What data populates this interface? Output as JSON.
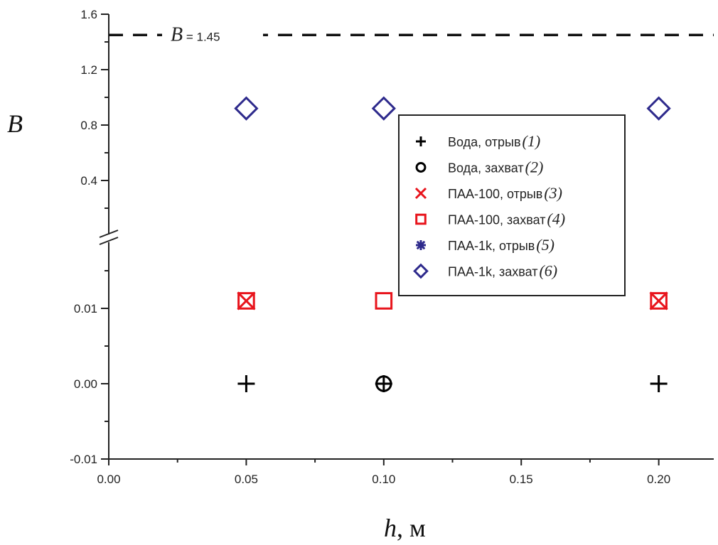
{
  "chart_data": {
    "type": "scatter",
    "title": "",
    "xlabel": "h, м",
    "xlabel_var": "h",
    "xlabel_unit": ", м",
    "ylabel": "B",
    "xlim": [
      0,
      0.22
    ],
    "x_ticks": [
      "0.00",
      "0.05",
      "0.10",
      "0.15",
      "0.20"
    ],
    "y_axis_break": true,
    "ylim_lower": [
      -0.01,
      0.0188
    ],
    "ylim_upper": [
      0.0,
      1.6
    ],
    "y_ticks_lower": [
      "-0.01",
      "0.00",
      "0.01"
    ],
    "y_ticks_upper": [
      "0.4",
      "0.8",
      "1.2",
      "1.6"
    ],
    "reference_line": {
      "value": 1.45,
      "label_var": "B",
      "label_rest": " = 1.45",
      "style": "dashed"
    },
    "grid": false,
    "legend_placement": "center-right",
    "series": [
      {
        "name": "Вода, отрыв",
        "num": "(1)",
        "marker": "plus",
        "color": "#000000",
        "x": [
          0.05,
          0.1,
          0.2
        ],
        "y": [
          0.0,
          0.0,
          0.0
        ]
      },
      {
        "name": "Вода, захват",
        "num": "(2)",
        "marker": "circle",
        "color": "#000000",
        "x": [
          0.1
        ],
        "y": [
          0.0
        ]
      },
      {
        "name": "ПАА-100, отрыв",
        "num": "(3)",
        "marker": "x",
        "color": "#e8141c",
        "x": [
          0.05,
          0.2
        ],
        "y": [
          0.011,
          0.011
        ]
      },
      {
        "name": "ПАА-100, захват",
        "num": "(4)",
        "marker": "square",
        "color": "#e8141c",
        "x": [
          0.05,
          0.1,
          0.2
        ],
        "y": [
          0.011,
          0.011,
          0.011
        ]
      },
      {
        "name": "ПАА-1k, отрыв",
        "num": "(5)",
        "marker": "star",
        "color": "#2e2a8c",
        "x": [],
        "y": []
      },
      {
        "name": "ПАА-1k, захват",
        "num": "(6)",
        "marker": "diamond",
        "color": "#2e2a8c",
        "x": [
          0.05,
          0.1,
          0.2
        ],
        "y": [
          0.92,
          0.92,
          0.92
        ]
      }
    ]
  }
}
